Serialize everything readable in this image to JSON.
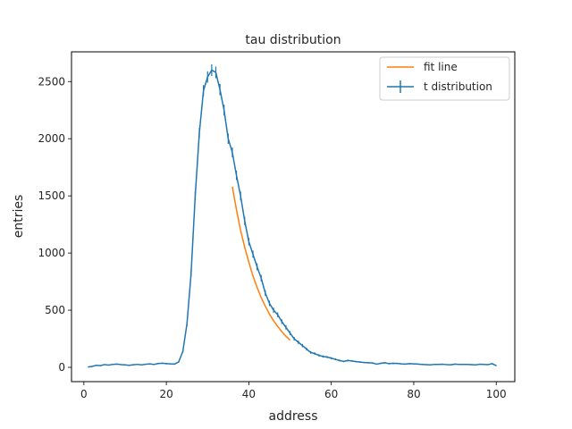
{
  "chart_data": {
    "type": "line",
    "title": "tau distribution",
    "xlabel": "address",
    "ylabel": "entries",
    "xlim": [
      -3,
      104.5
    ],
    "ylim": [
      -125,
      2760
    ],
    "xticks": [
      0,
      20,
      40,
      60,
      80,
      100
    ],
    "yticks": [
      0,
      500,
      1000,
      1500,
      2000,
      2500
    ],
    "grid": false,
    "legend_position": "top-right",
    "series": [
      {
        "name": "t distribution",
        "color": "#1f77b4",
        "style": "errorbar",
        "x": [
          1,
          2,
          3,
          4,
          5,
          6,
          7,
          8,
          9,
          10,
          11,
          12,
          13,
          14,
          15,
          16,
          17,
          18,
          19,
          20,
          21,
          22,
          23,
          24,
          25,
          26,
          27,
          28,
          29,
          30,
          31,
          32,
          33,
          34,
          35,
          36,
          37,
          38,
          39,
          40,
          41,
          42,
          43,
          44,
          45,
          46,
          47,
          48,
          49,
          50,
          51,
          52,
          53,
          54,
          55,
          56,
          57,
          58,
          59,
          60,
          61,
          62,
          63,
          64,
          65,
          66,
          67,
          68,
          69,
          70,
          71,
          72,
          73,
          74,
          75,
          76,
          77,
          78,
          79,
          80,
          81,
          82,
          83,
          84,
          85,
          86,
          87,
          88,
          89,
          90,
          91,
          92,
          93,
          94,
          95,
          96,
          97,
          98,
          99,
          100
        ],
        "y": [
          3,
          8,
          18,
          15,
          24,
          20,
          26,
          28,
          24,
          22,
          18,
          23,
          26,
          22,
          27,
          30,
          25,
          33,
          36,
          32,
          30,
          28,
          48,
          140,
          380,
          820,
          1500,
          2050,
          2420,
          2540,
          2600,
          2580,
          2430,
          2250,
          2000,
          1880,
          1680,
          1500,
          1280,
          1100,
          990,
          880,
          780,
          650,
          560,
          500,
          460,
          400,
          350,
          300,
          250,
          220,
          190,
          160,
          130,
          120,
          105,
          95,
          90,
          80,
          70,
          60,
          52,
          60,
          56,
          50,
          46,
          42,
          40,
          38,
          28,
          35,
          40,
          32,
          35,
          34,
          30,
          28,
          32,
          30,
          28,
          26,
          24,
          22,
          26,
          25,
          27,
          24,
          23,
          28,
          25,
          26,
          25,
          24,
          22,
          27,
          25,
          24,
          32,
          15
        ],
        "yerr": [
          2,
          3,
          4,
          4,
          5,
          4,
          5,
          5,
          5,
          5,
          4,
          5,
          5,
          5,
          5,
          5,
          5,
          6,
          6,
          6,
          5,
          5,
          7,
          12,
          19,
          29,
          39,
          45,
          49,
          50,
          51,
          51,
          49,
          47,
          45,
          43,
          41,
          39,
          36,
          33,
          31,
          30,
          28,
          25,
          24,
          22,
          21,
          20,
          19,
          17,
          16,
          15,
          14,
          13,
          11,
          11,
          10,
          10,
          9,
          9,
          8,
          8,
          7,
          8,
          7,
          7,
          7,
          6,
          6,
          6,
          5,
          6,
          6,
          6,
          6,
          6,
          5,
          5,
          6,
          5,
          5,
          5,
          5,
          5,
          5,
          5,
          5,
          5,
          5,
          5,
          5,
          5,
          5,
          5,
          5,
          5,
          5,
          5,
          6,
          4
        ]
      },
      {
        "name": "fit line",
        "color": "#ff7f0e",
        "style": "line",
        "x": [
          36,
          37,
          38,
          39,
          40,
          41,
          42,
          43,
          44,
          45,
          46,
          47,
          48,
          49,
          50
        ],
        "y": [
          1580,
          1380,
          1200,
          1050,
          920,
          800,
          700,
          610,
          535,
          465,
          408,
          358,
          312,
          272,
          238
        ]
      }
    ]
  }
}
